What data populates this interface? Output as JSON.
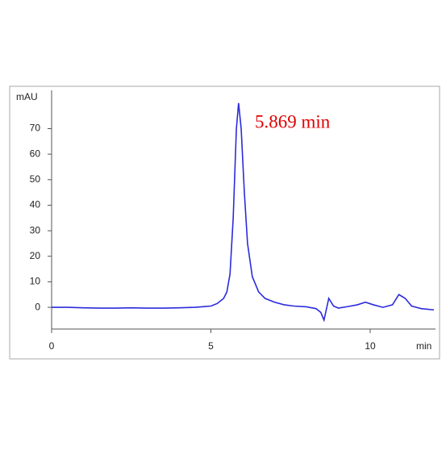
{
  "chart_data": {
    "type": "line",
    "y_label": "mAU",
    "x_label": "min",
    "annotation": "5.869 min",
    "x": [
      0,
      0.5,
      1,
      1.5,
      2,
      2.5,
      3,
      3.5,
      4,
      4.5,
      5,
      5.2,
      5.4,
      5.5,
      5.6,
      5.7,
      5.8,
      5.869,
      5.95,
      6.05,
      6.15,
      6.3,
      6.5,
      6.7,
      7,
      7.3,
      7.6,
      8,
      8.3,
      8.45,
      8.55,
      8.7,
      8.85,
      9,
      9.3,
      9.6,
      9.85,
      10.1,
      10.4,
      10.7,
      10.9,
      11.1,
      11.3,
      11.6,
      12
    ],
    "series": [
      {
        "color": "#2b2bdc",
        "values": [
          0,
          0,
          -0.2,
          -0.3,
          -0.3,
          -0.2,
          -0.3,
          -0.3,
          -0.2,
          0,
          0.5,
          1.5,
          3.5,
          6,
          13,
          35,
          70,
          80,
          70,
          45,
          25,
          12,
          6,
          3.5,
          2,
          1,
          0.5,
          0.2,
          -0.5,
          -2,
          -5,
          3.5,
          0.5,
          -0.3,
          0.3,
          1,
          2,
          1,
          0,
          1,
          5,
          3.5,
          0.5,
          -0.5,
          -1
        ]
      }
    ],
    "xlim": [
      0,
      12
    ],
    "ylim": [
      -8.5,
      85
    ],
    "xticks": [
      0,
      5,
      10
    ],
    "yticks": [
      0,
      10,
      20,
      30,
      40,
      50,
      60,
      70
    ]
  }
}
